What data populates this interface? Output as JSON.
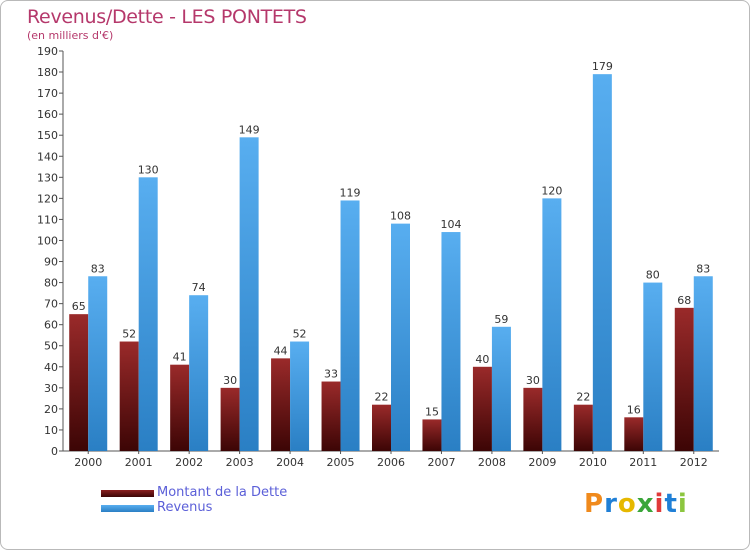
{
  "title": "Revenus/Dette - LES PONTETS",
  "subtitle": "(en milliers d'€)",
  "colors": {
    "title": "#b5386b",
    "dette": "#7a1515",
    "revenus": "#3f9be0",
    "legend_text": "#5b5fd8"
  },
  "logo": {
    "letters": [
      "P",
      "r",
      "o",
      "x",
      "i",
      "t",
      "i"
    ],
    "colors": [
      "#f08a1c",
      "#1f7fd6",
      "#e6b800",
      "#3aa63a",
      "#e03a3a",
      "#1f7fd6",
      "#8cc63f"
    ]
  },
  "chart_data": {
    "type": "bar",
    "title": "Revenus/Dette - LES PONTETS",
    "ylabel": "(en milliers d'€)",
    "xlabel": "",
    "categories": [
      "2000",
      "2001",
      "2002",
      "2003",
      "2004",
      "2005",
      "2006",
      "2007",
      "2008",
      "2009",
      "2010",
      "2011",
      "2012"
    ],
    "ylim": [
      0,
      190
    ],
    "yticks": [
      0,
      10,
      20,
      30,
      40,
      50,
      60,
      70,
      80,
      90,
      100,
      110,
      120,
      130,
      140,
      150,
      160,
      170,
      180,
      190
    ],
    "grid": false,
    "legend": "bottom-left",
    "series": [
      {
        "name": "Montant de la Dette",
        "values": [
          65,
          52,
          41,
          30,
          44,
          33,
          22,
          15,
          40,
          30,
          22,
          16,
          68
        ]
      },
      {
        "name": "Revenus",
        "values": [
          83,
          130,
          74,
          149,
          52,
          119,
          108,
          104,
          59,
          120,
          179,
          80,
          83
        ]
      }
    ]
  }
}
